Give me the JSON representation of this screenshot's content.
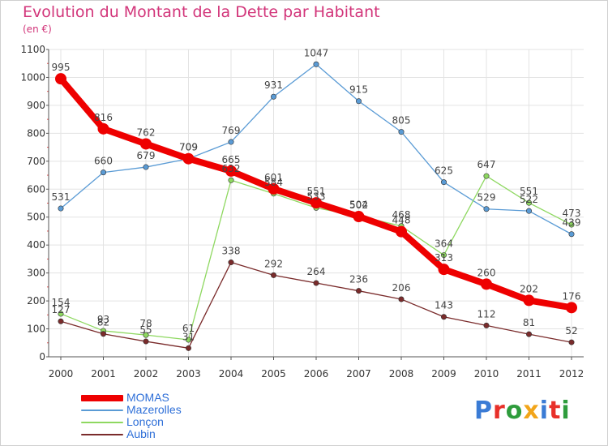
{
  "title": "Evolution du Montant de la Dette par Habitant",
  "subtitle": "(en €)",
  "logo": {
    "text": "Proxiti",
    "letter_colors": [
      "#3a7bd5",
      "#e8302a",
      "#2e9c3c",
      "#f2a51a",
      "#3a7bd5",
      "#e8302a",
      "#2e9c3c"
    ]
  },
  "colors": {
    "title": "#d2357a",
    "axis": "#555555",
    "grid": "#e3e3e3",
    "tick_mark": "#e05050"
  },
  "chart_data": {
    "type": "line",
    "title": "Evolution du Montant de la Dette par Habitant",
    "subtitle": "(en €)",
    "xlabel": "",
    "ylabel": "",
    "x": [
      "2000",
      "2001",
      "2002",
      "2003",
      "2004",
      "2005",
      "2006",
      "2007",
      "2008",
      "2009",
      "2010",
      "2011",
      "2012"
    ],
    "ylim": [
      0,
      1100
    ],
    "yticks": [
      0,
      100,
      200,
      300,
      400,
      500,
      600,
      700,
      800,
      900,
      1000,
      1100
    ],
    "grid": true,
    "legend_position": "bottom-left",
    "series": [
      {
        "name": "MOMAS",
        "color": "#ee0000",
        "emphasis": true,
        "values": [
          995,
          816,
          762,
          709,
          665,
          601,
          551,
          502,
          448,
          313,
          260,
          202,
          176
        ],
        "labels": [
          "995",
          "816",
          "762",
          "709",
          "665",
          "601",
          "551",
          "502",
          "448",
          "313",
          "260",
          "202",
          "176"
        ]
      },
      {
        "name": "Mazerolles",
        "color": "#5a9bd5",
        "values": [
          531,
          660,
          679,
          709,
          769,
          931,
          1047,
          915,
          805,
          625,
          529,
          522,
          439
        ],
        "labels": [
          "531",
          "660",
          "679",
          "709",
          "769",
          "931",
          "1047",
          "915",
          "805",
          "625",
          "529",
          "522",
          "439"
        ]
      },
      {
        "name": "Lonçon",
        "color": "#8ed860",
        "values": [
          154,
          93,
          78,
          61,
          632,
          584,
          533,
          504,
          468,
          364,
          647,
          551,
          473
        ],
        "labels": [
          "154",
          "93",
          "78",
          "61",
          "632",
          "584",
          "533",
          "504",
          "468",
          "364",
          "647",
          "551",
          "473"
        ]
      },
      {
        "name": "Aubin",
        "color": "#7a2b2b",
        "values": [
          127,
          82,
          55,
          31,
          338,
          292,
          264,
          236,
          206,
          143,
          112,
          81,
          52
        ],
        "labels": [
          "127",
          "82",
          "55",
          "31",
          "338",
          "292",
          "264",
          "236",
          "206",
          "143",
          "112",
          "81",
          "52"
        ]
      }
    ]
  }
}
